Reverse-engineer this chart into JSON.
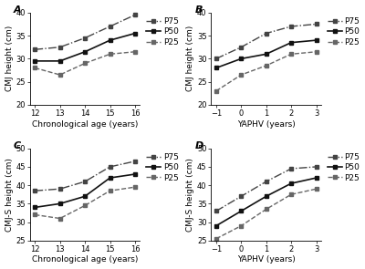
{
  "panel_A": {
    "label": "A",
    "xlabel": "Chronological age (years)",
    "ylabel": "CMJ height (cm)",
    "xticks": [
      12,
      13,
      14,
      15,
      16
    ],
    "ylim": [
      20,
      40
    ],
    "yticks": [
      20,
      25,
      30,
      35,
      40
    ],
    "P75": [
      32.0,
      32.5,
      34.5,
      37.0,
      39.5
    ],
    "P50": [
      29.5,
      29.5,
      31.5,
      34.0,
      35.5
    ],
    "P25": [
      28.0,
      26.5,
      29.0,
      31.0,
      31.5
    ]
  },
  "panel_B": {
    "label": "B",
    "xlabel": "YAPHV (years)",
    "ylabel": "CMJ height (cm)",
    "xticks": [
      -1,
      0,
      1,
      2,
      3
    ],
    "ylim": [
      20,
      40
    ],
    "yticks": [
      20,
      25,
      30,
      35,
      40
    ],
    "P75": [
      30.0,
      32.5,
      35.5,
      37.0,
      37.5
    ],
    "P50": [
      28.0,
      30.0,
      31.0,
      33.5,
      34.0
    ],
    "P25": [
      23.0,
      26.5,
      28.5,
      31.0,
      31.5
    ]
  },
  "panel_C": {
    "label": "C",
    "xlabel": "Chronological age (years)",
    "ylabel": "CMJ-S height (cm)",
    "xticks": [
      12,
      13,
      14,
      15,
      16
    ],
    "ylim": [
      25,
      50
    ],
    "yticks": [
      25,
      30,
      35,
      40,
      45,
      50
    ],
    "P75": [
      38.5,
      39.0,
      41.0,
      45.0,
      46.5
    ],
    "P50": [
      34.0,
      35.0,
      37.0,
      42.0,
      43.0
    ],
    "P25": [
      32.0,
      31.0,
      34.5,
      38.5,
      39.5
    ]
  },
  "panel_D": {
    "label": "D",
    "xlabel": "YAPHV (years)",
    "ylabel": "CMJ-S height (cm)",
    "xticks": [
      -1,
      0,
      1,
      2,
      3
    ],
    "ylim": [
      25,
      50
    ],
    "yticks": [
      25,
      30,
      35,
      40,
      45,
      50
    ],
    "P75": [
      33.0,
      37.0,
      41.0,
      44.5,
      45.0
    ],
    "P50": [
      29.0,
      33.0,
      37.0,
      40.5,
      42.0
    ],
    "P25": [
      25.5,
      29.0,
      33.5,
      37.5,
      39.0
    ]
  },
  "line_styles": {
    "P75": {
      "linestyle": "-.",
      "marker": "s",
      "color": "#444444",
      "linewidth": 1.0,
      "markersize": 3.5
    },
    "P50": {
      "linestyle": "-",
      "marker": "s",
      "color": "#111111",
      "linewidth": 1.2,
      "markersize": 3.5
    },
    "P25": {
      "linestyle": "--",
      "marker": "s",
      "color": "#666666",
      "linewidth": 1.0,
      "markersize": 3.5
    }
  },
  "legend_labels": [
    "P75",
    "P50",
    "P25"
  ],
  "background_color": "#ffffff",
  "label_fontsize": 6.5,
  "tick_fontsize": 6,
  "legend_fontsize": 6.5,
  "panel_label_fontsize": 8
}
